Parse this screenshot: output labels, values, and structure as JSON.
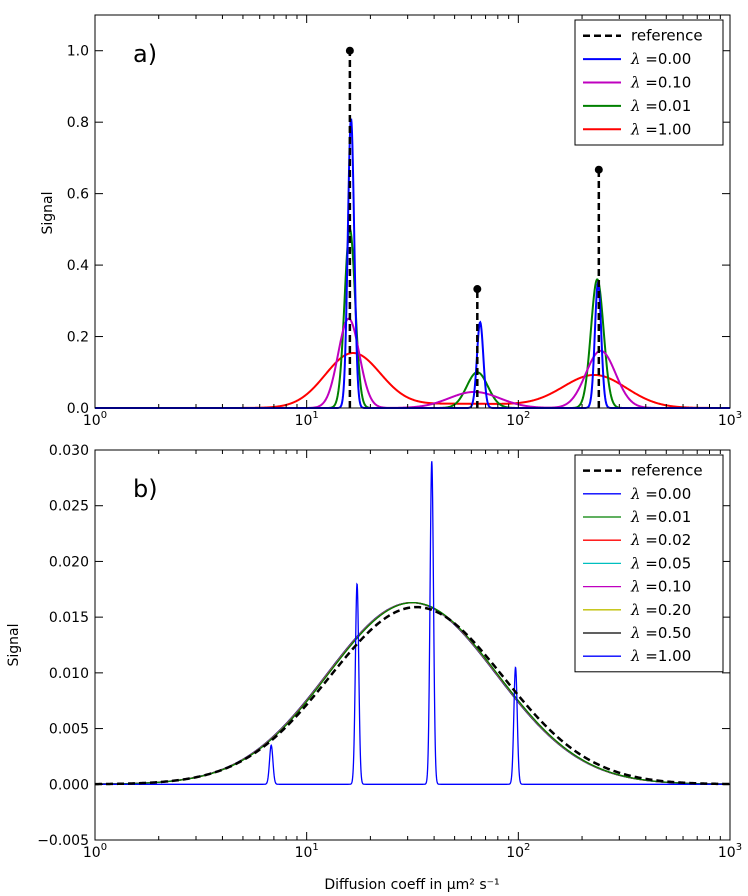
{
  "chart_data": [
    {
      "type": "line",
      "panel_label": "a)",
      "xscale": "log",
      "xlim": [
        1,
        1000
      ],
      "ylim": [
        0,
        1.1
      ],
      "xlabel": "",
      "ylabel": "Signal",
      "xtick_labels": [
        {
          "base": "10",
          "exp": "0"
        },
        {
          "base": "10",
          "exp": "1"
        },
        {
          "base": "10",
          "exp": "2"
        },
        {
          "base": "10",
          "exp": "3"
        }
      ],
      "ytick_labels": [
        "0.0",
        "0.2",
        "0.4",
        "0.6",
        "0.8",
        "1.0"
      ],
      "yticks": [
        0,
        0.2,
        0.4,
        0.6,
        0.8,
        1.0
      ],
      "legend_position": "top-right",
      "reference": {
        "name": "reference",
        "color": "#000000",
        "style": "dashed",
        "stems": [
          {
            "x": 16,
            "y": 1.0
          },
          {
            "x": 64,
            "y": 0.333
          },
          {
            "x": 240,
            "y": 0.667
          }
        ]
      },
      "series": [
        {
          "lambda": "0.00",
          "color": "#0000ff",
          "peaks": [
            {
              "x": 16.2,
              "h": 0.81,
              "w": 0.015
            },
            {
              "x": 66,
              "h": 0.24,
              "w": 0.015
            },
            {
              "x": 238,
              "h": 0.35,
              "w": 0.015
            }
          ]
        },
        {
          "lambda": "0.10",
          "color": "#bf00bf",
          "peaks": [
            {
              "x": 15.8,
              "h": 0.25,
              "w": 0.05
            },
            {
              "x": 62,
              "h": 0.045,
              "w": 0.12
            },
            {
              "x": 245,
              "h": 0.16,
              "w": 0.07
            }
          ]
        },
        {
          "lambda": "0.01",
          "color": "#008000",
          "peaks": [
            {
              "x": 16.0,
              "h": 0.5,
              "w": 0.025
            },
            {
              "x": 64,
              "h": 0.1,
              "w": 0.05
            },
            {
              "x": 236,
              "h": 0.36,
              "w": 0.03
            }
          ]
        },
        {
          "lambda": "1.00",
          "color": "#ff0000",
          "peaks": [
            {
              "x": 16.5,
              "h": 0.15,
              "w": 0.13
            },
            {
              "x": 55,
              "h": 0.012,
              "w": 0.35
            },
            {
              "x": 230,
              "h": 0.09,
              "w": 0.15
            }
          ]
        }
      ]
    },
    {
      "type": "line",
      "panel_label": "b)",
      "xscale": "log",
      "xlim": [
        1,
        1000
      ],
      "ylim": [
        -0.005,
        0.03
      ],
      "xlabel": "Diffusion coeff in μm² s⁻¹",
      "ylabel": "Signal",
      "xtick_labels": [
        {
          "base": "10",
          "exp": "0"
        },
        {
          "base": "10",
          "exp": "1"
        },
        {
          "base": "10",
          "exp": "2"
        },
        {
          "base": "10",
          "exp": "3"
        }
      ],
      "ytick_labels": [
        "−0.005",
        "0.000",
        "0.005",
        "0.010",
        "0.015",
        "0.020",
        "0.025",
        "0.030"
      ],
      "yticks": [
        -0.005,
        0,
        0.005,
        0.01,
        0.015,
        0.02,
        0.025,
        0.03
      ],
      "legend_position": "top-right",
      "reference": {
        "name": "reference",
        "color": "#000000",
        "style": "dashed",
        "center": 33,
        "height": 0.0159,
        "sigma_log10": 0.41
      },
      "smooth_center": 31.5,
      "smooth_height": 0.0163,
      "smooth_sigma_log10": 0.4,
      "series": [
        {
          "lambda": "0.00",
          "color": "#0000ff",
          "kind": "spiky",
          "spikes": [
            {
              "x": 6.8,
              "h": 0.0035
            },
            {
              "x": 17.3,
              "h": 0.018
            },
            {
              "x": 39,
              "h": 0.029
            },
            {
              "x": 97,
              "h": 0.0105
            }
          ]
        },
        {
          "lambda": "0.01",
          "color": "#008000",
          "kind": "smooth"
        },
        {
          "lambda": "0.02",
          "color": "#ff0000",
          "kind": "smooth"
        },
        {
          "lambda": "0.05",
          "color": "#00bfbf",
          "kind": "smooth"
        },
        {
          "lambda": "0.10",
          "color": "#bf00bf",
          "kind": "smooth"
        },
        {
          "lambda": "0.20",
          "color": "#bfbf00",
          "kind": "smooth"
        },
        {
          "lambda": "0.50",
          "color": "#000000",
          "kind": "smooth"
        },
        {
          "lambda": "1.00",
          "color": "#0000ff",
          "kind": "smooth"
        }
      ]
    }
  ]
}
